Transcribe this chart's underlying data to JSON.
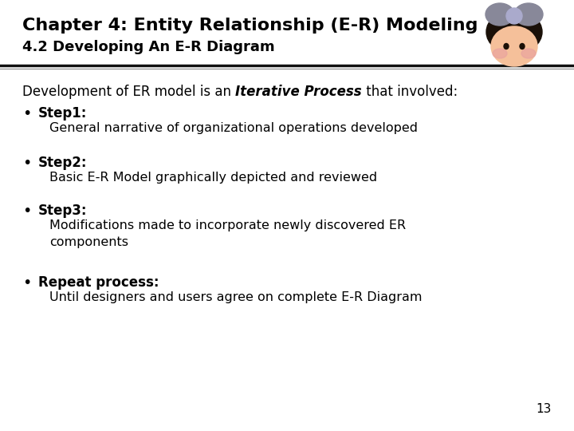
{
  "title_line1": "Chapter 4: Entity Relationship (E-R) Modeling",
  "title_line2": "4.2 Developing An E-R Diagram",
  "bg_color": "#ffffff",
  "separator_color": "#1a1a1a",
  "title_color": "#000000",
  "body_color": "#000000",
  "page_number": "13",
  "intro_text_normal1": "Development of ER model is an ",
  "intro_text_bold_italic": "Iterative Process",
  "intro_text_normal2": " that involved:",
  "bullets": [
    {
      "label": "Step1:",
      "description": "General narrative of organizational operations developed"
    },
    {
      "label": "Step2:",
      "description": "Basic E-R Model graphically depicted and reviewed"
    },
    {
      "label": "Step3:",
      "description": "Modifications made to incorporate newly discovered ER\ncomponents"
    },
    {
      "label": "Repeat process:",
      "description": "Until designers and users agree on complete E-R Diagram"
    }
  ],
  "title_fontsize": 16,
  "subtitle_fontsize": 13,
  "body_fontsize": 12,
  "page_num_fontsize": 11
}
